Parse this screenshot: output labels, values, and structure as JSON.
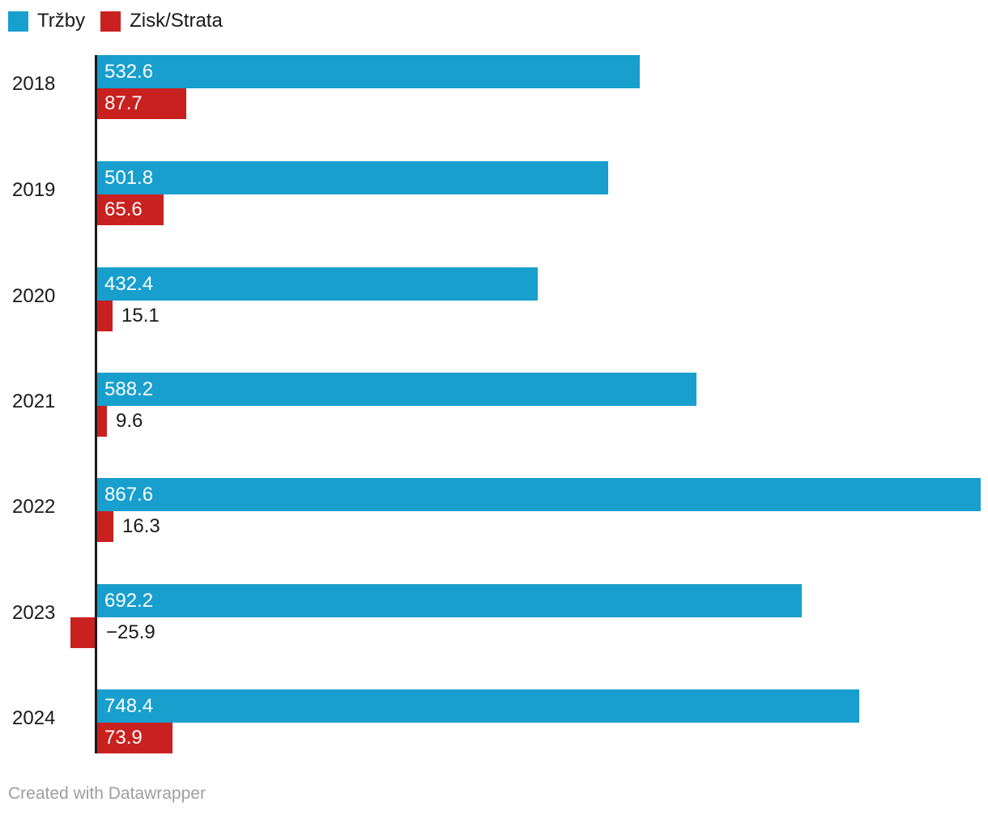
{
  "legend": {
    "items": [
      {
        "key": "trzby",
        "label": "Tržby",
        "color": "#189fcd"
      },
      {
        "key": "zisk-strata",
        "label": "Zisk/Strata",
        "color": "#c9211f"
      }
    ]
  },
  "footer": {
    "text": "Created with Datawrapper"
  },
  "colors": {
    "revenue_bar": "#189fcd",
    "profit_bar": "#c9211f",
    "axis": "#1a1a1a",
    "text": "#1a1a1a",
    "inside_label": "#ffffff",
    "footer_text": "#9e9e9e",
    "background": "#ffffff"
  },
  "chart_data": {
    "type": "bar",
    "orientation": "horizontal",
    "title": "",
    "xlabel": "",
    "ylabel": "",
    "grid": false,
    "legend_position": "top-left",
    "value_labels": true,
    "xmax": 867.6,
    "categories": [
      "2018",
      "2019",
      "2020",
      "2021",
      "2022",
      "2023",
      "2024"
    ],
    "series": [
      {
        "key": "trzby",
        "name": "Tržby",
        "color": "#189fcd",
        "values": [
          532.6,
          501.8,
          432.4,
          588.2,
          867.6,
          692.2,
          748.4
        ],
        "labels": [
          "532.6",
          "501.8",
          "432.4",
          "588.2",
          "867.6",
          "692.2",
          "748.4"
        ]
      },
      {
        "key": "zisk-strata",
        "name": "Zisk/Strata",
        "color": "#c9211f",
        "values": [
          87.7,
          65.6,
          15.1,
          9.6,
          16.3,
          -25.9,
          73.9
        ],
        "labels": [
          "87.7",
          "65.6",
          "15.1",
          "9.6",
          "16.3",
          "−25.9",
          "73.9"
        ]
      }
    ]
  }
}
